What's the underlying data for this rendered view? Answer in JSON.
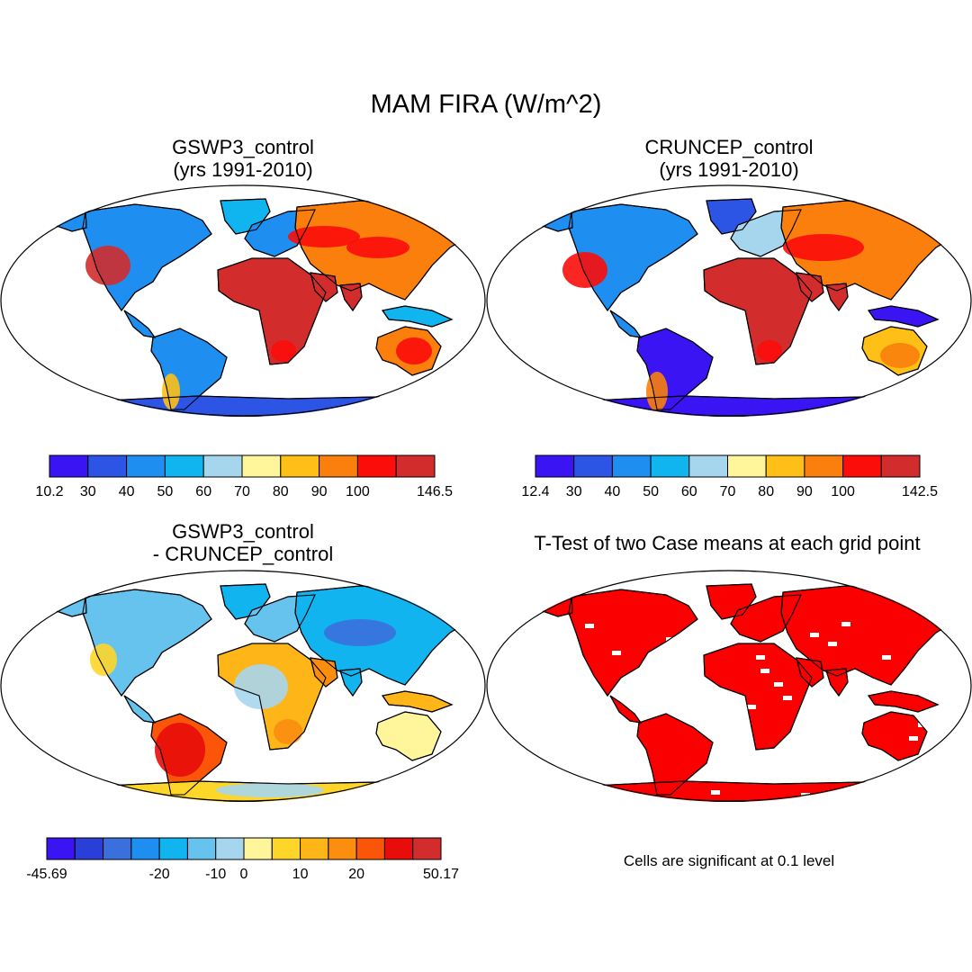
{
  "figure": {
    "title": "MAM FIRA (W/m^2)",
    "note": "Cells are significant at 0.1 level"
  },
  "panels": [
    {
      "id": "gswp3",
      "title": "GSWP3_control\n(yrs 1991-2010)",
      "colorbar": {
        "labels": [
          "10.2",
          "30",
          "40",
          "50",
          "60",
          "70",
          "80",
          "90",
          "100",
          "146.5"
        ],
        "colors": [
          "#3a14f2",
          "#2d55e5",
          "#1e8ff0",
          "#10b5f0",
          "#a6d6ee",
          "#fff69c",
          "#fec016",
          "#fa7f0c",
          "#fb0d0a",
          "#d22c2c"
        ]
      }
    },
    {
      "id": "cruncep",
      "title": "CRUNCEP_control\n(yrs 1991-2010)",
      "colorbar": {
        "labels": [
          "12.4",
          "30",
          "40",
          "50",
          "60",
          "70",
          "80",
          "90",
          "100",
          "142.5"
        ],
        "colors": [
          "#3a14f2",
          "#2d55e5",
          "#1e8ff0",
          "#10b5f0",
          "#a6d6ee",
          "#fff69c",
          "#fec016",
          "#fa7f0c",
          "#fb0d0a",
          "#d22c2c"
        ]
      }
    },
    {
      "id": "diff",
      "title": "GSWP3_control\n- CRUNCEP_control",
      "colorbar": {
        "labels": [
          "-45.69",
          "-20",
          "-10",
          "0",
          "10",
          "20",
          "50.17"
        ],
        "colors": [
          "#3a14f2",
          "#2a3ed8",
          "#3a70dd",
          "#1e8ff0",
          "#12b4f0",
          "#66c3ee",
          "#a6d6ee",
          "#fff69c",
          "#fed62a",
          "#fdb517",
          "#fb8d0f",
          "#fa5508",
          "#e80c0a",
          "#d22c2c"
        ]
      }
    },
    {
      "id": "ttest",
      "title": "T-Test of two Case means at each grid point",
      "colors": [
        "#fb0000"
      ]
    }
  ]
}
